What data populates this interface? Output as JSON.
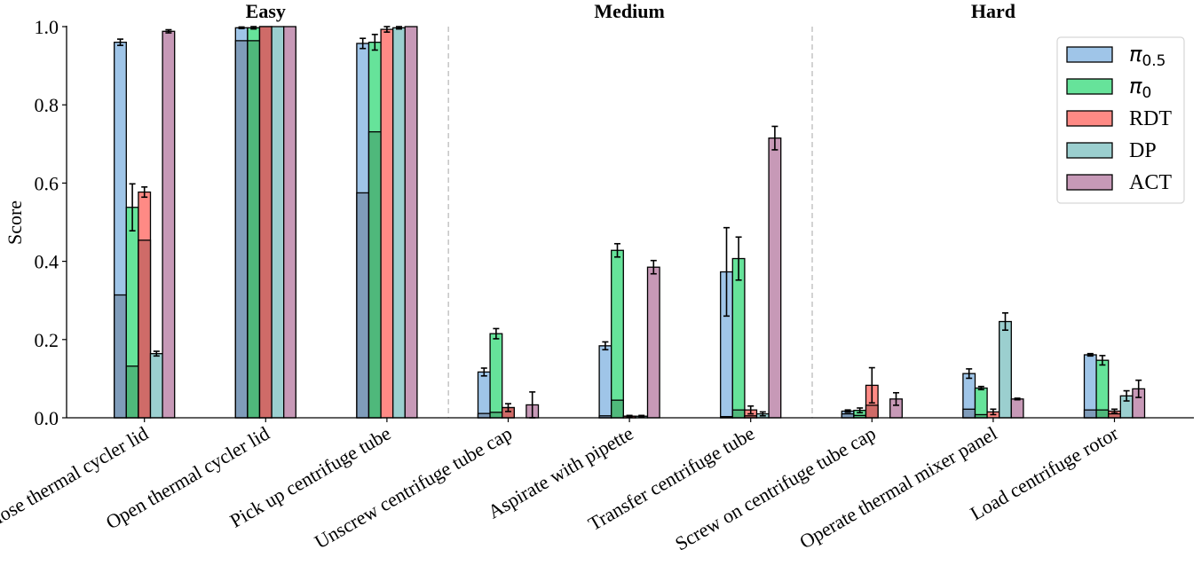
{
  "chart_data": {
    "type": "bar",
    "ylabel": "Score",
    "ylim": [
      0,
      1.0
    ],
    "yticks": [
      "0.0",
      "0.2",
      "0.4",
      "0.6",
      "0.8",
      "1.0"
    ],
    "grid": false,
    "legend_placement": "top-right",
    "categories": [
      "Close thermal cycler lid",
      "Open thermal cycler lid",
      "Pick up centrifuge tube",
      "Unscrew centrifuge tube cap",
      "Aspirate with pipette",
      "Transfer centrifuge tube",
      "Screw on centrifuge tube cap",
      "Operate thermal mixer panel",
      "Load centrifuge rotor"
    ],
    "groups": [
      {
        "label": "Easy",
        "categories": [
          0,
          1,
          2
        ]
      },
      {
        "label": "Medium",
        "categories": [
          3,
          4,
          5
        ]
      },
      {
        "label": "Hard",
        "categories": [
          6,
          7,
          8
        ]
      }
    ],
    "series": [
      {
        "name": "π0.5",
        "name_base": "π",
        "name_sub": "0.5",
        "color": "#9fc5e8",
        "dark_color": "#7f9cba",
        "values": [
          0.96,
          0.997,
          0.957,
          0.117,
          0.184,
          0.373,
          0.017,
          0.113,
          0.161
        ],
        "dark_values": [
          0.314,
          0.964,
          0.575,
          0.011,
          0.005,
          0.003,
          0.01,
          0.022,
          0.02
        ],
        "errors": [
          0.008,
          0.002,
          0.013,
          0.01,
          0.01,
          0.113,
          0.003,
          0.012,
          0.003
        ]
      },
      {
        "name": "π0",
        "name_base": "π",
        "name_sub": "0",
        "color": "#66e39a",
        "dark_color": "#4fb87b",
        "values": [
          0.538,
          0.997,
          0.96,
          0.215,
          0.428,
          0.407,
          0.019,
          0.076,
          0.147
        ],
        "dark_values": [
          0.132,
          0.964,
          0.731,
          0.014,
          0.045,
          0.02,
          0.006,
          0.008,
          0.02
        ],
        "errors": [
          0.06,
          0.003,
          0.02,
          0.013,
          0.017,
          0.055,
          0.006,
          0.004,
          0.012
        ]
      },
      {
        "name": "RDT",
        "color": "#ff8a85",
        "dark_color": "#cf6b68",
        "values": [
          0.577,
          1.0,
          0.993,
          0.026,
          0.004,
          0.02,
          0.083,
          0.015,
          0.017
        ],
        "dark_values": [
          0.454,
          1.0,
          0,
          0.026,
          0.004,
          0.005,
          0.032,
          0,
          0.01
        ],
        "errors": [
          0.013,
          0,
          0.007,
          0.01,
          0.002,
          0.01,
          0.045,
          0.007,
          0.005
        ]
      },
      {
        "name": "DP",
        "color": "#9bcfcf",
        "dark_color": "#7ca6a6",
        "values": [
          0.164,
          1.0,
          0.997,
          0,
          0.004,
          0.01,
          0,
          0.246,
          0.056
        ],
        "dark_values": [
          0,
          0,
          0,
          0,
          0,
          0,
          0,
          0,
          0
        ],
        "errors": [
          0.006,
          0,
          0.003,
          0,
          0.002,
          0.005,
          0,
          0.022,
          0.013
        ]
      },
      {
        "name": "ACT",
        "color": "#c799b7",
        "dark_color": "#a07b93",
        "values": [
          0.988,
          1.0,
          1.0,
          0.033,
          0.385,
          0.715,
          0.048,
          0.048,
          0.074
        ],
        "dark_values": [
          0,
          0,
          0,
          0,
          0,
          0,
          0,
          0,
          0
        ],
        "errors": [
          0.004,
          0,
          0,
          0.033,
          0.017,
          0.03,
          0.016,
          0.002,
          0.022
        ]
      }
    ]
  }
}
